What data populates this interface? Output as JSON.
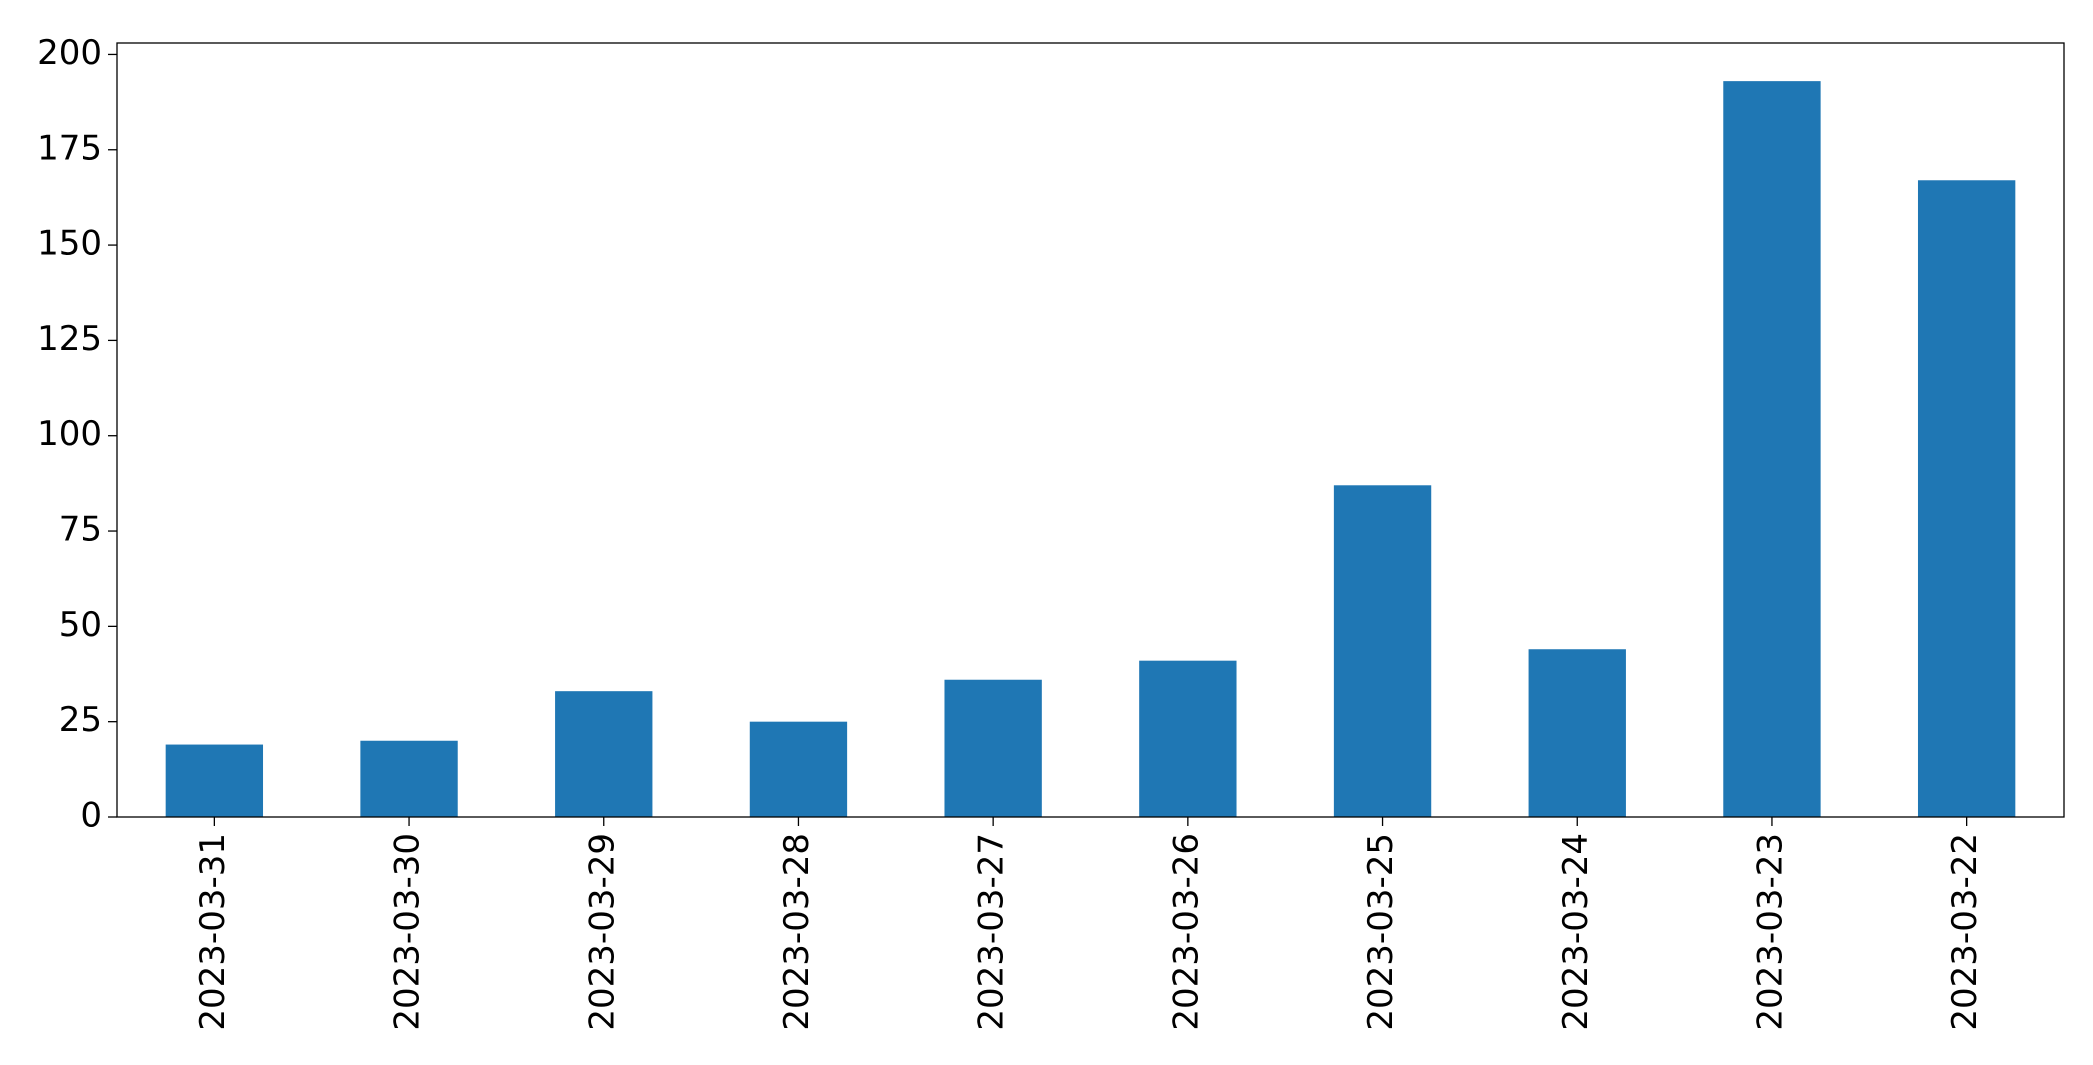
{
  "chart_data": {
    "type": "bar",
    "categories": [
      "2023-03-31",
      "2023-03-30",
      "2023-03-29",
      "2023-03-28",
      "2023-03-27",
      "2023-03-26",
      "2023-03-25",
      "2023-03-24",
      "2023-03-23",
      "2023-03-22"
    ],
    "values": [
      19,
      20,
      33,
      25,
      36,
      41,
      87,
      44,
      193,
      167
    ],
    "color": "#1f77b4",
    "ylim": [
      0,
      203
    ],
    "yticks": [
      0,
      25,
      50,
      75,
      100,
      125,
      150,
      175,
      200
    ],
    "grid": false
  }
}
